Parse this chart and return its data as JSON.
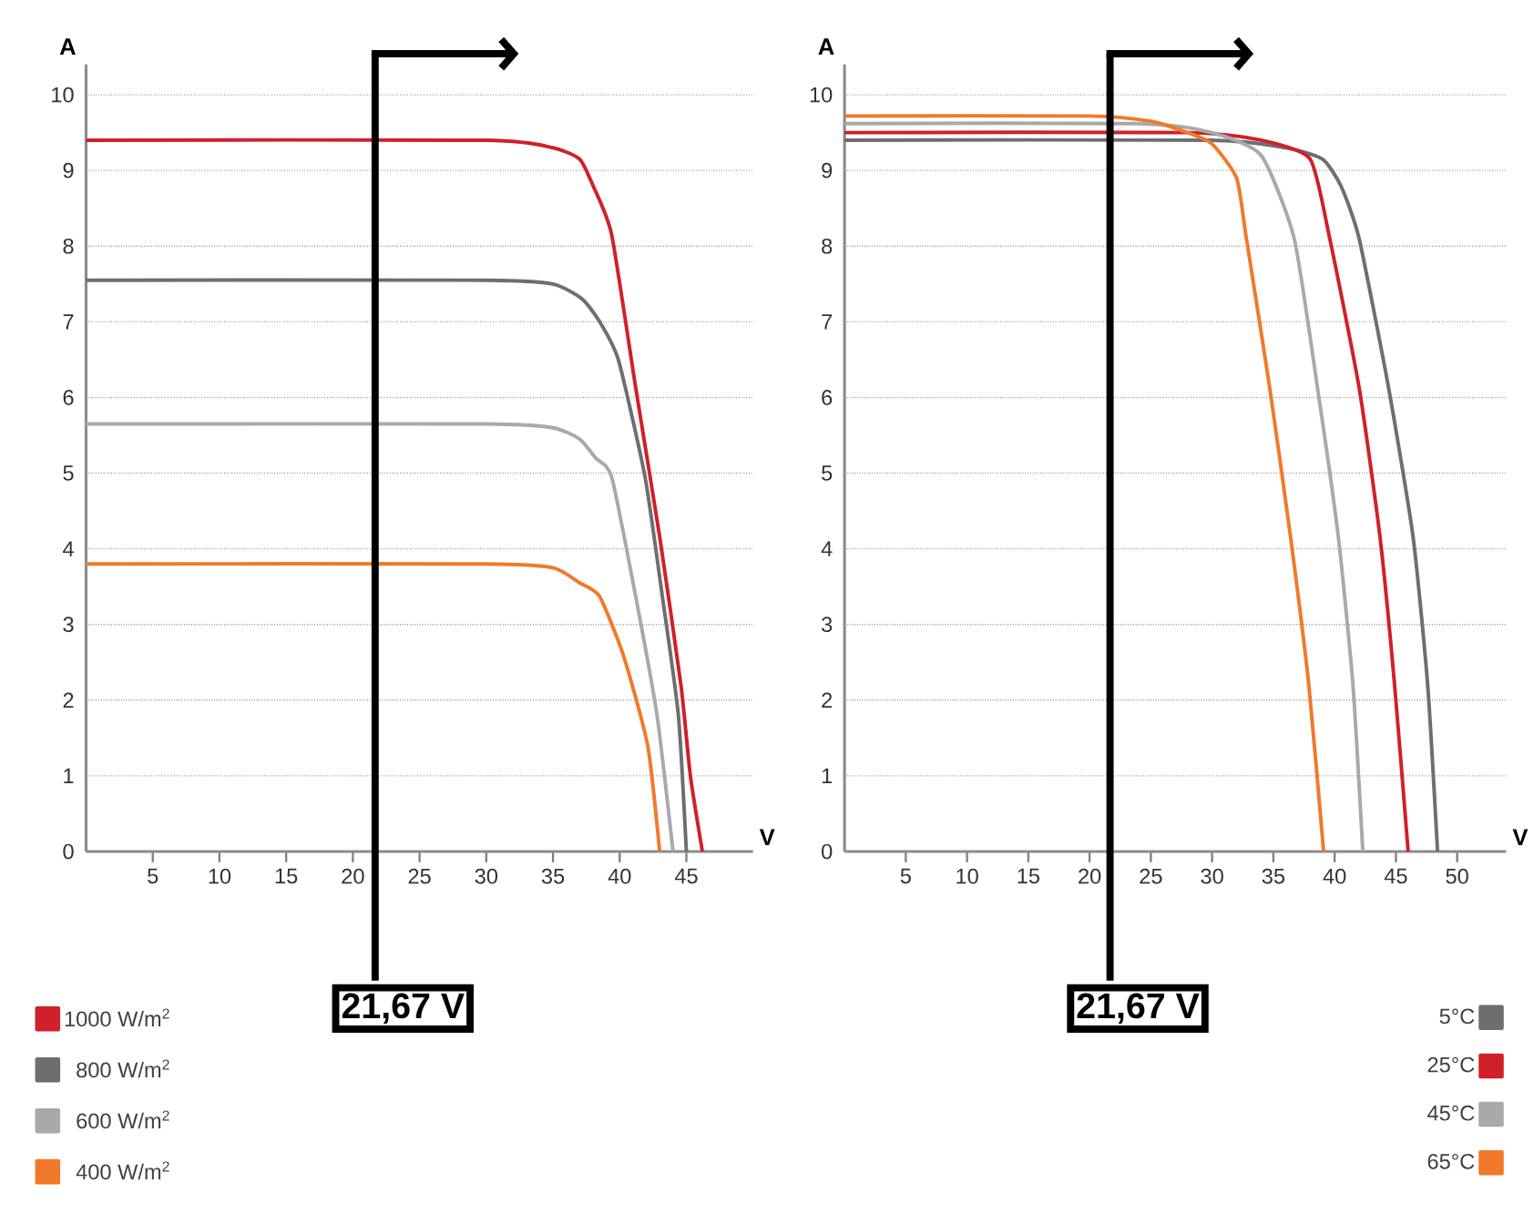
{
  "chart_data": [
    {
      "type": "line",
      "xlabel": "V",
      "ylabel": "A",
      "xlim": [
        0,
        50
      ],
      "ylim": [
        0,
        10.4
      ],
      "xticks": [
        5,
        10,
        15,
        20,
        25,
        30,
        35,
        40,
        45
      ],
      "yticks": [
        0,
        1,
        2,
        3,
        4,
        5,
        6,
        7,
        8,
        9,
        10
      ],
      "grid": "y",
      "legend": "bottom left",
      "series": [
        {
          "name": "1000 W/m$^{2}$",
          "color": "#d0202a",
          "x": [
            0,
            30,
            35,
            37,
            38,
            39.4,
            41.2,
            43,
            44.6,
            45.3,
            46.2
          ],
          "values": [
            9.4,
            9.4,
            9.3,
            9.15,
            8.8,
            8.15,
            6.13,
            4.16,
            2.19,
            1.0,
            0
          ]
        },
        {
          "name": "800 W/m$^{2}$",
          "color": "#6d6e70",
          "x": [
            0,
            30,
            35,
            37.2,
            38.5,
            39.9,
            41.9,
            43.2,
            44.4,
            45.0
          ],
          "values": [
            7.55,
            7.55,
            7.5,
            7.3,
            7.0,
            6.5,
            4.95,
            3.37,
            1.8,
            0
          ]
        },
        {
          "name": "600 W/m$^{2}$",
          "color": "#a7a9ab",
          "x": [
            0,
            30,
            35,
            37,
            38.2,
            39.4,
            41.2,
            42.8,
            44.0
          ],
          "values": [
            5.65,
            5.65,
            5.6,
            5.45,
            5.2,
            4.95,
            3.37,
            1.8,
            0
          ]
        },
        {
          "name": "400 W/m$^{2}$",
          "color": "#f07a2a",
          "x": [
            0,
            30,
            35,
            37,
            38.5,
            40.3,
            42.1,
            43.0
          ],
          "values": [
            3.8,
            3.8,
            3.75,
            3.55,
            3.37,
            2.58,
            1.4,
            0
          ]
        }
      ],
      "ref_lines": [
        {
          "axis": "x",
          "value": 21.67,
          "label": "21,67 V",
          "color": "#000000"
        }
      ]
    },
    {
      "type": "line",
      "xlabel": "V",
      "ylabel": "A",
      "xlim": [
        0,
        54
      ],
      "ylim": [
        0,
        10.4
      ],
      "xticks": [
        5,
        10,
        15,
        20,
        25,
        30,
        35,
        40,
        45,
        50
      ],
      "yticks": [
        0,
        1,
        2,
        3,
        4,
        5,
        6,
        7,
        8,
        9,
        10
      ],
      "grid": "y",
      "legend": "bottom right",
      "series": [
        {
          "name": "5°C",
          "color": "#6d6e70",
          "x": [
            0,
            30,
            36,
            39,
            40.5,
            42,
            44.4,
            46.4,
            47.6,
            48.4
          ],
          "values": [
            9.4,
            9.4,
            9.3,
            9.15,
            8.8,
            8.1,
            6.13,
            4.16,
            2.19,
            0
          ]
        },
        {
          "name": "25°C",
          "color": "#d0202a",
          "x": [
            0,
            28,
            34,
            38,
            39.6,
            42,
            43.7,
            44.9,
            46.0
          ],
          "values": [
            9.5,
            9.5,
            9.4,
            9.15,
            8.1,
            6.13,
            4.16,
            2.19,
            0
          ]
        },
        {
          "name": "45°C",
          "color": "#a7a9ab",
          "x": [
            0,
            24,
            30,
            34,
            36.7,
            38.6,
            40.3,
            41.5,
            42.3
          ],
          "values": [
            9.62,
            9.62,
            9.5,
            9.2,
            8.1,
            6.13,
            4.16,
            2.19,
            0
          ]
        },
        {
          "name": "65°C",
          "color": "#f07a2a",
          "x": [
            0,
            20,
            25,
            28,
            30,
            32,
            32.8,
            34.7,
            36.4,
            37.9,
            39.1
          ],
          "values": [
            9.72,
            9.72,
            9.65,
            9.5,
            9.35,
            8.9,
            8.1,
            6.13,
            4.16,
            2.19,
            0
          ]
        }
      ],
      "ref_lines": [
        {
          "axis": "x",
          "value": 21.67,
          "label": "21,67 V",
          "color": "#000000"
        }
      ]
    }
  ]
}
